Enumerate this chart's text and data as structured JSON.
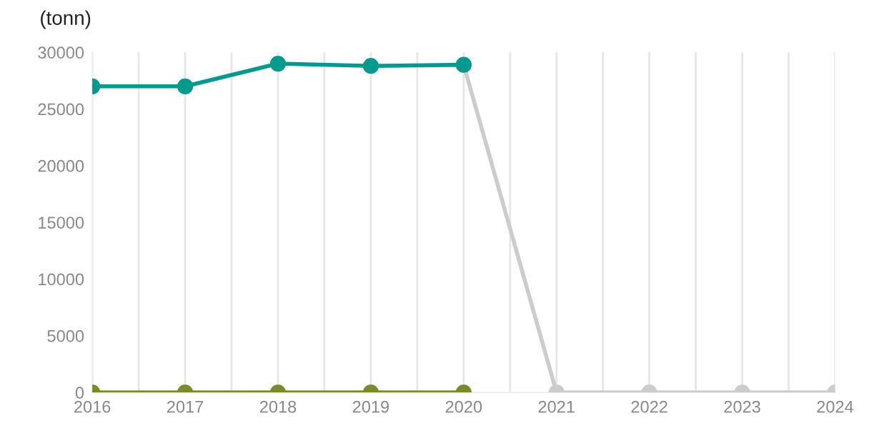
{
  "chart_data": {
    "type": "line",
    "ylabel": "(tonn)",
    "series": [
      {
        "color": "#cccccc",
        "x": [
          2020,
          2021,
          2022,
          2023,
          2024
        ],
        "values": [
          28900,
          0,
          0,
          0,
          0
        ]
      },
      {
        "color": "#7a8b2b",
        "x": [
          2016,
          2017,
          2018,
          2019,
          2020
        ],
        "values": [
          0,
          0,
          0,
          0,
          0
        ]
      },
      {
        "color": "#009b8f",
        "x": [
          2016,
          2017,
          2018,
          2019,
          2020
        ],
        "values": [
          27000,
          27000,
          29000,
          28800,
          28900
        ]
      }
    ],
    "xlim": [
      2016,
      2024
    ],
    "xticks": [
      2016,
      {
        "value": 2016.5,
        "label": null
      },
      2017,
      {
        "value": 2017.5,
        "label": null
      },
      2018,
      {
        "value": 2018.5,
        "label": null
      },
      2019,
      {
        "value": 2019.5,
        "label": null
      },
      2020,
      {
        "value": 2020.5,
        "label": null
      },
      2021,
      {
        "value": 2021.5,
        "label": null
      },
      2022,
      {
        "value": 2022.5,
        "label": null
      },
      2023,
      {
        "value": 2023.5,
        "label": null
      },
      2024
    ],
    "ylim": [
      0,
      30000
    ],
    "yticks": [
      0,
      5000,
      10000,
      15000,
      20000,
      25000,
      30000
    ],
    "grid": "x",
    "marker": "circle",
    "line_style": "solid"
  }
}
